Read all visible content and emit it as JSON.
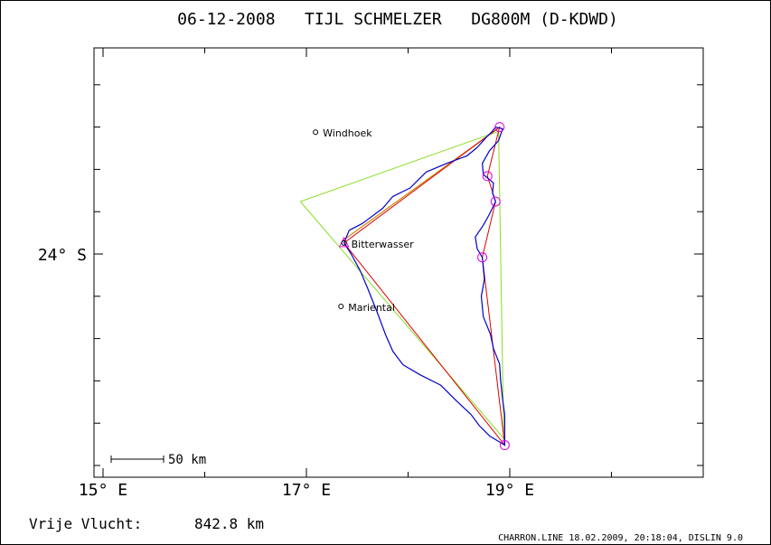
{
  "title": "06-12-2008   TIJL SCHMELZER   DG800M (D-KDWD)",
  "axes": {
    "x_ticks": [
      {
        "label": "15° E",
        "value": 15
      },
      {
        "label": "17° E",
        "value": 17
      },
      {
        "label": "19° E",
        "value": 19
      }
    ],
    "y_ticks": [
      {
        "label": "24° S",
        "value": -24
      }
    ]
  },
  "places": [
    {
      "name": "Windhoek",
      "lon": 17.09,
      "lat": -22.56
    },
    {
      "name": "Bitterwasser",
      "lon": 17.37,
      "lat": -23.87
    },
    {
      "name": "Mariental",
      "lon": 17.34,
      "lat": -24.62
    }
  ],
  "scale_bar": {
    "label": "50 km"
  },
  "distance": {
    "label": "Vrije Vlucht:",
    "value": "842.8 km"
  },
  "footer": "CHARRON.LINE 18.02.2009, 20:18:04, DISLIN 9.0",
  "colors": {
    "track": "#0000cc",
    "task": "#dd0000",
    "triangle": "#88dd22",
    "leg": "#cc8800",
    "turnpoint": "#dd00dd"
  },
  "turnpoints": [
    {
      "lon": 17.37,
      "lat": -23.87
    },
    {
      "lon": 18.9,
      "lat": -22.5
    },
    {
      "lon": 18.78,
      "lat": -23.08
    },
    {
      "lon": 18.86,
      "lat": -23.38
    },
    {
      "lon": 18.73,
      "lat": -24.04
    },
    {
      "lon": 18.95,
      "lat": -26.26
    }
  ],
  "task_route": [
    {
      "lon": 17.37,
      "lat": -23.87
    },
    {
      "lon": 18.9,
      "lat": -22.5
    },
    {
      "lon": 18.78,
      "lat": -23.08
    },
    {
      "lon": 18.86,
      "lat": -23.38
    },
    {
      "lon": 18.73,
      "lat": -24.04
    },
    {
      "lon": 18.95,
      "lat": -26.26
    },
    {
      "lon": 17.37,
      "lat": -23.87
    }
  ],
  "triangle": [
    {
      "lon": 16.94,
      "lat": -23.38
    },
    {
      "lon": 18.89,
      "lat": -22.55
    },
    {
      "lon": 18.94,
      "lat": -26.18
    },
    {
      "lon": 16.94,
      "lat": -23.38
    }
  ],
  "leg": [
    {
      "lon": 17.36,
      "lat": -23.84
    },
    {
      "lon": 18.88,
      "lat": -22.52
    }
  ],
  "track": [
    {
      "lon": 17.37,
      "lat": -23.87
    },
    {
      "lon": 17.42,
      "lat": -23.72
    },
    {
      "lon": 17.55,
      "lat": -23.64
    },
    {
      "lon": 17.75,
      "lat": -23.46
    },
    {
      "lon": 17.85,
      "lat": -23.32
    },
    {
      "lon": 18.02,
      "lat": -23.22
    },
    {
      "lon": 18.18,
      "lat": -23.03
    },
    {
      "lon": 18.38,
      "lat": -22.93
    },
    {
      "lon": 18.58,
      "lat": -22.84
    },
    {
      "lon": 18.68,
      "lat": -22.74
    },
    {
      "lon": 18.77,
      "lat": -22.62
    },
    {
      "lon": 18.82,
      "lat": -22.56
    },
    {
      "lon": 18.86,
      "lat": -22.5
    },
    {
      "lon": 18.93,
      "lat": -22.52
    },
    {
      "lon": 18.89,
      "lat": -22.66
    },
    {
      "lon": 18.8,
      "lat": -22.78
    },
    {
      "lon": 18.73,
      "lat": -22.93
    },
    {
      "lon": 18.74,
      "lat": -23.06
    },
    {
      "lon": 18.84,
      "lat": -23.16
    },
    {
      "lon": 18.83,
      "lat": -23.28
    },
    {
      "lon": 18.86,
      "lat": -23.38
    },
    {
      "lon": 18.8,
      "lat": -23.53
    },
    {
      "lon": 18.74,
      "lat": -23.66
    },
    {
      "lon": 18.66,
      "lat": -23.8
    },
    {
      "lon": 18.68,
      "lat": -23.94
    },
    {
      "lon": 18.73,
      "lat": -24.04
    },
    {
      "lon": 18.75,
      "lat": -24.3
    },
    {
      "lon": 18.72,
      "lat": -24.5
    },
    {
      "lon": 18.74,
      "lat": -24.74
    },
    {
      "lon": 18.81,
      "lat": -24.95
    },
    {
      "lon": 18.84,
      "lat": -25.12
    },
    {
      "lon": 18.9,
      "lat": -25.3
    },
    {
      "lon": 18.91,
      "lat": -25.5
    },
    {
      "lon": 18.93,
      "lat": -25.72
    },
    {
      "lon": 18.95,
      "lat": -25.9
    },
    {
      "lon": 18.95,
      "lat": -26.26
    },
    {
      "lon": 18.8,
      "lat": -26.15
    },
    {
      "lon": 18.7,
      "lat": -26.03
    },
    {
      "lon": 18.62,
      "lat": -25.9
    },
    {
      "lon": 18.47,
      "lat": -25.73
    },
    {
      "lon": 18.32,
      "lat": -25.55
    },
    {
      "lon": 18.12,
      "lat": -25.43
    },
    {
      "lon": 17.95,
      "lat": -25.31
    },
    {
      "lon": 17.85,
      "lat": -25.15
    },
    {
      "lon": 17.78,
      "lat": -24.96
    },
    {
      "lon": 17.7,
      "lat": -24.7
    },
    {
      "lon": 17.6,
      "lat": -24.4
    },
    {
      "lon": 17.53,
      "lat": -24.2
    },
    {
      "lon": 17.44,
      "lat": -24.0
    },
    {
      "lon": 17.37,
      "lat": -23.87
    }
  ]
}
